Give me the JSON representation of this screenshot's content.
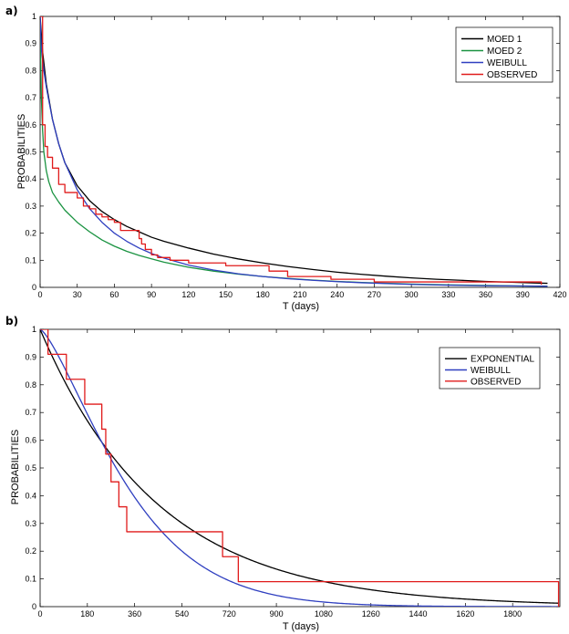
{
  "chart_data": [
    {
      "panel_label": "a)",
      "type": "line",
      "xlabel": "T (days)",
      "ylabel": "PROBABILITIES",
      "xlim": [
        0,
        420
      ],
      "ylim": [
        0,
        1
      ],
      "xticks": [
        0,
        30,
        60,
        90,
        120,
        150,
        180,
        210,
        240,
        270,
        300,
        330,
        360,
        390,
        420
      ],
      "yticks": [
        0,
        0.1,
        0.2,
        0.3,
        0.4,
        0.5,
        0.6,
        0.7,
        0.8,
        0.9,
        1
      ],
      "legend_position": "top-right",
      "series": [
        {
          "name": "MOED 1",
          "color": "#000000",
          "kind": "smooth",
          "x": [
            0,
            2,
            5,
            10,
            15,
            20,
            30,
            40,
            50,
            60,
            70,
            80,
            90,
            100,
            120,
            140,
            160,
            180,
            200,
            220,
            240,
            260,
            280,
            300,
            320,
            340,
            360,
            380,
            400,
            410
          ],
          "y": [
            1.0,
            0.87,
            0.75,
            0.62,
            0.53,
            0.46,
            0.375,
            0.32,
            0.28,
            0.25,
            0.225,
            0.205,
            0.185,
            0.17,
            0.145,
            0.123,
            0.105,
            0.09,
            0.077,
            0.066,
            0.056,
            0.048,
            0.041,
            0.035,
            0.03,
            0.026,
            0.022,
            0.019,
            0.016,
            0.015
          ]
        },
        {
          "name": "MOED 2",
          "color": "#1a9341",
          "kind": "smooth",
          "x": [
            0,
            1,
            2,
            3,
            5,
            7,
            10,
            15,
            20,
            30,
            40,
            50,
            60,
            70,
            80,
            90,
            100,
            120,
            140,
            160,
            180,
            200,
            220,
            240,
            260,
            280,
            300,
            330,
            360,
            390,
            410
          ],
          "y": [
            0.97,
            0.7,
            0.58,
            0.5,
            0.43,
            0.39,
            0.35,
            0.315,
            0.285,
            0.24,
            0.205,
            0.175,
            0.152,
            0.133,
            0.118,
            0.105,
            0.093,
            0.074,
            0.06,
            0.049,
            0.04,
            0.033,
            0.027,
            0.022,
            0.018,
            0.015,
            0.012,
            0.009,
            0.007,
            0.005,
            0.004
          ]
        },
        {
          "name": "WEIBULL",
          "color": "#2f3fc0",
          "kind": "smooth",
          "x": [
            0,
            1,
            2,
            3,
            5,
            7,
            10,
            15,
            20,
            30,
            40,
            50,
            60,
            70,
            80,
            90,
            100,
            120,
            140,
            160,
            180,
            200,
            220,
            240,
            260,
            280,
            300,
            330,
            360,
            390,
            410
          ],
          "y": [
            1.0,
            0.88,
            0.84,
            0.8,
            0.74,
            0.69,
            0.62,
            0.53,
            0.46,
            0.36,
            0.29,
            0.24,
            0.2,
            0.17,
            0.145,
            0.125,
            0.108,
            0.082,
            0.064,
            0.05,
            0.04,
            0.032,
            0.026,
            0.021,
            0.017,
            0.014,
            0.011,
            0.008,
            0.006,
            0.005,
            0.004
          ]
        },
        {
          "name": "OBSERVED",
          "color": "#e01b1b",
          "kind": "step",
          "x": [
            0,
            2,
            4,
            6,
            10,
            15,
            20,
            25,
            30,
            35,
            40,
            45,
            50,
            55,
            60,
            65,
            75,
            80,
            82,
            85,
            90,
            95,
            105,
            120,
            150,
            180,
            185,
            195,
            200,
            210,
            235,
            270,
            330,
            360,
            405
          ],
          "y": [
            1.0,
            0.6,
            0.52,
            0.48,
            0.44,
            0.38,
            0.35,
            0.35,
            0.33,
            0.3,
            0.29,
            0.27,
            0.26,
            0.25,
            0.24,
            0.21,
            0.21,
            0.18,
            0.16,
            0.14,
            0.12,
            0.11,
            0.1,
            0.09,
            0.08,
            0.08,
            0.06,
            0.06,
            0.04,
            0.04,
            0.03,
            0.02,
            0.02,
            0.02,
            0.01
          ]
        }
      ]
    },
    {
      "panel_label": "b)",
      "type": "line",
      "xlabel": "T (days)",
      "ylabel": "PROBABILITIES",
      "xlim": [
        0,
        1980
      ],
      "ylim": [
        0,
        1
      ],
      "xticks": [
        0,
        180,
        360,
        540,
        720,
        900,
        1080,
        1260,
        1440,
        1620,
        1800
      ],
      "yticks": [
        0,
        0.1,
        0.2,
        0.3,
        0.4,
        0.5,
        0.6,
        0.7,
        0.8,
        0.9,
        1
      ],
      "legend_position": "top-right",
      "series": [
        {
          "name": "EXPONENTIAL",
          "color": "#000000",
          "kind": "exp",
          "scale": 450
        },
        {
          "name": "WEIBULL",
          "color": "#2f3fc0",
          "kind": "weibull",
          "scale": 380,
          "shape": 1.35
        },
        {
          "name": "OBSERVED",
          "color": "#e01b1b",
          "kind": "step",
          "x": [
            0,
            30,
            100,
            170,
            235,
            250,
            270,
            300,
            330,
            695,
            755,
            1975
          ],
          "y": [
            1.0,
            0.91,
            0.82,
            0.73,
            0.64,
            0.55,
            0.45,
            0.36,
            0.27,
            0.18,
            0.09,
            0.0
          ]
        }
      ]
    }
  ]
}
